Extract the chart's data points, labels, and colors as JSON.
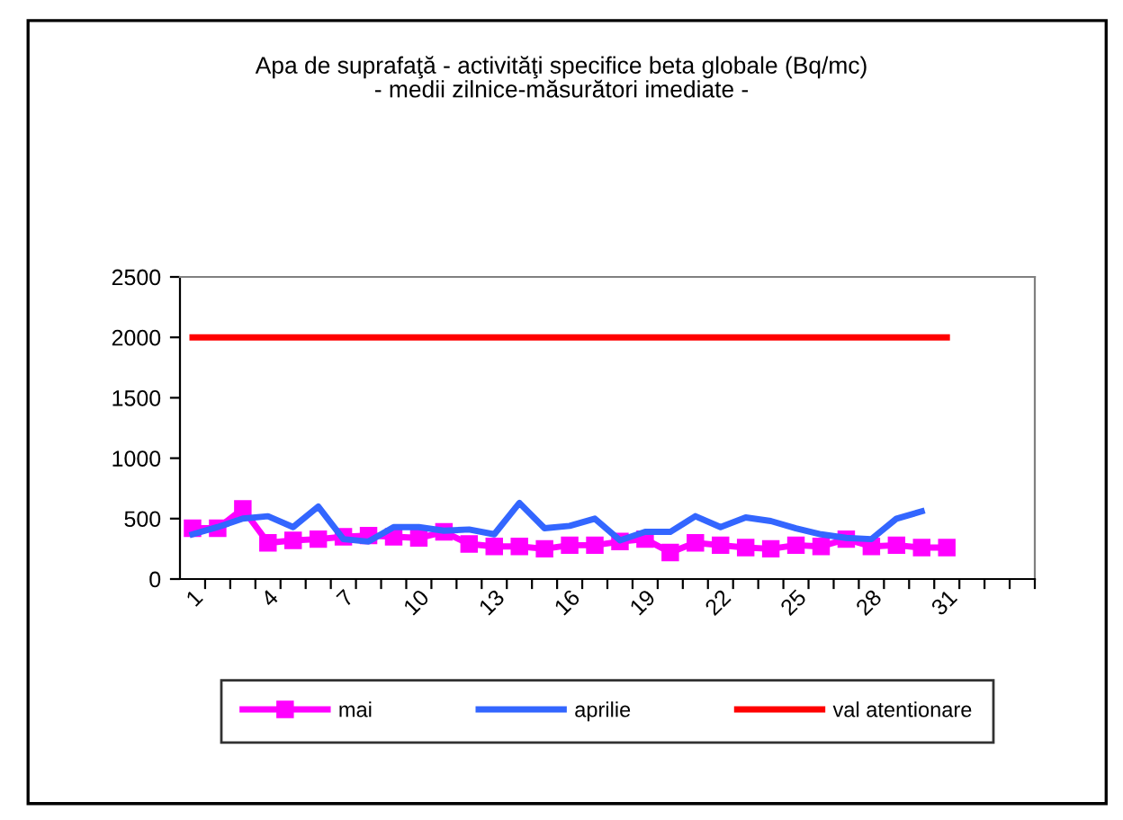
{
  "chart_data": {
    "type": "line",
    "title": "Apa de suprafaţă - activităţi specifice beta globale (Bq/mc)\n- medii zilnice-măsurători imediate -",
    "categories": [
      "1",
      null,
      null,
      "4",
      null,
      null,
      "7",
      null,
      null,
      "10",
      null,
      null,
      "13",
      null,
      null,
      "16",
      null,
      null,
      "19",
      null,
      null,
      "22",
      null,
      null,
      "25",
      null,
      null,
      "28",
      null,
      null,
      "31",
      null,
      null,
      null
    ],
    "series": [
      {
        "name": "mai",
        "color": "#ff00ff",
        "marker": "square",
        "values": [
          420,
          420,
          580,
          300,
          320,
          330,
          350,
          360,
          350,
          340,
          390,
          290,
          270,
          270,
          250,
          280,
          280,
          310,
          330,
          220,
          300,
          280,
          260,
          250,
          280,
          270,
          330,
          270,
          280,
          260,
          260,
          null,
          null,
          null
        ]
      },
      {
        "name": "aprilie",
        "color": "#3366ff",
        "marker": "none",
        "values": [
          370,
          430,
          500,
          520,
          430,
          600,
          330,
          310,
          430,
          430,
          400,
          410,
          370,
          630,
          420,
          440,
          500,
          320,
          390,
          390,
          520,
          430,
          510,
          480,
          420,
          370,
          340,
          330,
          500,
          560,
          null,
          null,
          null,
          null
        ]
      },
      {
        "name": "val atentionare",
        "color": "#ff0000",
        "marker": "none",
        "values": [
          2000,
          2000,
          2000,
          2000,
          2000,
          2000,
          2000,
          2000,
          2000,
          2000,
          2000,
          2000,
          2000,
          2000,
          2000,
          2000,
          2000,
          2000,
          2000,
          2000,
          2000,
          2000,
          2000,
          2000,
          2000,
          2000,
          2000,
          2000,
          2000,
          2000,
          2000,
          null,
          null,
          null
        ]
      }
    ],
    "ylim": [
      0,
      2500
    ],
    "yticks": [
      0,
      500,
      1000,
      1500,
      2000,
      2500
    ],
    "grid": false,
    "legend": "bottom",
    "line_style": "solid"
  }
}
